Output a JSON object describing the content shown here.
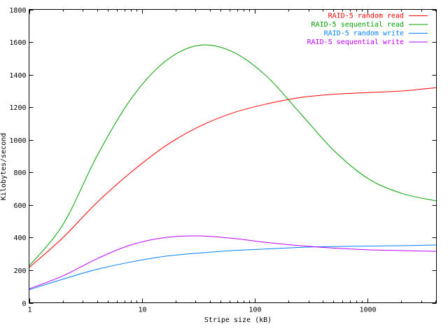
{
  "chart_data": {
    "type": "line",
    "title": "",
    "xlabel": "Stripe size (kB)",
    "ylabel": "Kilobytes/second",
    "x_scale": "log",
    "xlim": [
      1,
      4096
    ],
    "ylim": [
      0,
      1800
    ],
    "x_ticks": [
      1,
      10,
      100,
      1000
    ],
    "x_minor_ticks": [
      2,
      3,
      4,
      5,
      6,
      7,
      8,
      9,
      20,
      30,
      40,
      50,
      60,
      70,
      80,
      90,
      200,
      300,
      400,
      500,
      600,
      700,
      800,
      900,
      2000,
      3000,
      4000
    ],
    "y_ticks": [
      0,
      200,
      400,
      600,
      800,
      1000,
      1200,
      1400,
      1600,
      1800
    ],
    "grid": false,
    "legend_position": "top-right",
    "x": [
      1,
      2,
      4,
      8,
      16,
      32,
      64,
      128,
      256,
      512,
      1024,
      2048,
      4096
    ],
    "series": [
      {
        "name": "RAID-5 random read",
        "color": "#ff0000",
        "values": [
          215,
          400,
          615,
          800,
          960,
          1080,
          1165,
          1220,
          1260,
          1280,
          1290,
          1300,
          1320
        ]
      },
      {
        "name": "RAID-5 sequential read",
        "color": "#00a000",
        "values": [
          225,
          480,
          900,
          1250,
          1480,
          1580,
          1540,
          1390,
          1160,
          930,
          760,
          670,
          625
        ]
      },
      {
        "name": "RAID-5 random write",
        "color": "#0080ff",
        "values": [
          80,
          145,
          205,
          250,
          285,
          305,
          320,
          330,
          340,
          345,
          348,
          350,
          355
        ]
      },
      {
        "name": "RAID-5 sequential write",
        "color": "#c000ff",
        "values": [
          85,
          165,
          270,
          355,
          400,
          410,
          395,
          370,
          350,
          335,
          325,
          320,
          315
        ]
      }
    ]
  }
}
